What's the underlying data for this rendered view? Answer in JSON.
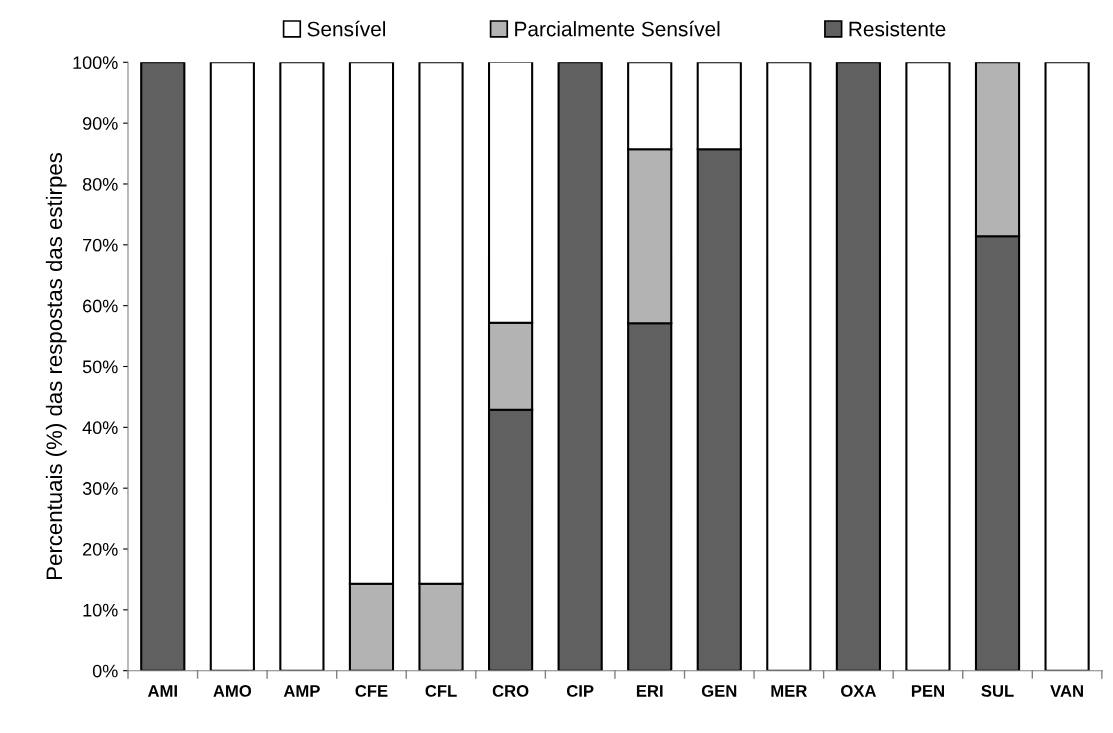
{
  "chart_data": {
    "type": "bar",
    "stacked": true,
    "ylabel": "Percentuais (%) das respostas das estirpes",
    "categories": [
      "AMI",
      "AMO",
      "AMP",
      "CFE",
      "CFL",
      "CRO",
      "CIP",
      "ERI",
      "GEN",
      "MER",
      "OXA",
      "PEN",
      "SUL",
      "VAN"
    ],
    "series": [
      {
        "name": "Resistente",
        "color": "#606060",
        "values": [
          100,
          0,
          0,
          0,
          0,
          42.9,
          100,
          57.1,
          85.7,
          0,
          100,
          0,
          71.4,
          0
        ]
      },
      {
        "name": "Parcialmente Sensível",
        "color": "#b3b3b3",
        "values": [
          0,
          0,
          0,
          14.3,
          14.3,
          14.3,
          0,
          28.6,
          0,
          0,
          0,
          0,
          28.6,
          0
        ]
      },
      {
        "name": "Sensível",
        "color": "#ffffff",
        "values": [
          0,
          100,
          100,
          85.7,
          85.7,
          42.9,
          0,
          14.3,
          14.3,
          100,
          0,
          100,
          0,
          100
        ]
      }
    ],
    "ylim": [
      0,
      100
    ],
    "yticks": [
      {
        "value": 0,
        "label": "0%"
      },
      {
        "value": 10,
        "label": "10%"
      },
      {
        "value": 20,
        "label": "20%"
      },
      {
        "value": 30,
        "label": "30%"
      },
      {
        "value": 40,
        "label": "40%"
      },
      {
        "value": 50,
        "label": "50%"
      },
      {
        "value": 60,
        "label": "60%"
      },
      {
        "value": 70,
        "label": "70%"
      },
      {
        "value": 80,
        "label": "80%"
      },
      {
        "value": 90,
        "label": "90%"
      },
      {
        "value": 100,
        "label": "100%"
      }
    ],
    "grid": false,
    "legend": "top"
  }
}
